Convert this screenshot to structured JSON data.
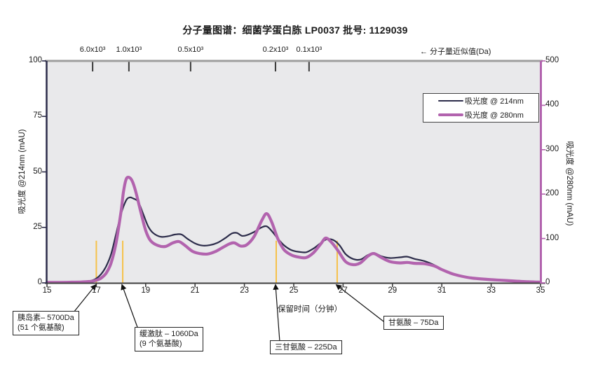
{
  "title": "分子量图谱：细菌学蛋白胨 LP0037  批号: 1129039",
  "top_axis": {
    "note": "← 分子量近似值(Da)",
    "markers": [
      {
        "label": "6.0x10³",
        "t": 16.85
      },
      {
        "label": "1.0x10³",
        "t": 18.32
      },
      {
        "label": "0.5x10³",
        "t": 20.82
      },
      {
        "label": "0.2x10³",
        "t": 24.26
      },
      {
        "label": "0.1x10³",
        "t": 25.62
      }
    ]
  },
  "axes": {
    "left": {
      "title": "吸光度 @214nm (mAU)",
      "ticks": [
        0,
        25,
        50,
        75,
        100
      ]
    },
    "right": {
      "title": "吸光度 @280nm (mAU)",
      "ticks": [
        0,
        100,
        200,
        300,
        400,
        500
      ]
    },
    "bottom": {
      "title": "保留时间（分钟）",
      "ticks": [
        15,
        17,
        19,
        21,
        23,
        25,
        27,
        29,
        31,
        33,
        35
      ]
    }
  },
  "legend": {
    "items": [
      {
        "label": "吸光度 @ 214nm",
        "color": "#2c2c4a",
        "width": 2
      },
      {
        "label": "吸光度 @ 280nm",
        "color": "#b263ae",
        "width": 4
      }
    ]
  },
  "annotations": [
    {
      "t": 17.0,
      "lines": [
        "胰岛素– 5700Da",
        "(51 个氨基酸)"
      ]
    },
    {
      "t": 18.07,
      "lines": [
        "缓激肽 – 1060Da",
        "(9 个氨基酸)"
      ]
    },
    {
      "t": 24.29,
      "lines": [
        "三甘氨酸 – 225Da"
      ]
    },
    {
      "t": 26.76,
      "lines": [
        "甘氨酸  – 75Da"
      ]
    }
  ],
  "colors": {
    "navy": "#2c2c4a",
    "purple": "#b263ae",
    "marker_orange": "#f6c14a",
    "plot_bg": "#e9e9eb",
    "top_spine": "#9e9e9e",
    "bottom_spine": "#3f3f3f"
  },
  "chart_data": {
    "type": "line",
    "title": "分子量图谱：细菌学蛋白胨 LP0037  批号: 1129039",
    "xlabel": "保留时间（分钟）",
    "ylabel_left": "吸光度 @214nm (mAU)",
    "ylabel_right": "吸光度 @280nm (mAU)",
    "xlim": [
      15,
      35
    ],
    "ylim_left": [
      0,
      100
    ],
    "ylim_right": [
      0,
      500
    ],
    "grid": false,
    "legend_position": "upper right inside",
    "series": [
      {
        "name": "吸光度 @ 214nm",
        "axis": "left",
        "color": "#2c2c4a",
        "width": 2.2,
        "x": [
          15,
          15.5,
          16,
          16.4,
          16.8,
          17,
          17.2,
          17.4,
          17.6,
          17.8,
          18,
          18.2,
          18.35,
          18.5,
          18.7,
          18.9,
          19.1,
          19.3,
          19.6,
          19.9,
          20.2,
          20.45,
          20.7,
          21,
          21.3,
          21.6,
          21.9,
          22.2,
          22.5,
          22.7,
          22.9,
          23.1,
          23.4,
          23.7,
          23.9,
          24.1,
          24.35,
          24.6,
          24.9,
          25.2,
          25.5,
          25.8,
          26.1,
          26.35,
          26.6,
          26.85,
          27.1,
          27.4,
          27.7,
          28,
          28.25,
          28.55,
          28.9,
          29.3,
          29.6,
          29.9,
          30.3,
          30.7,
          31,
          31.4,
          31.8,
          32.2,
          32.8,
          33.4,
          34,
          34.5,
          35
        ],
        "y": [
          0.3,
          0.3,
          0.4,
          0.5,
          1,
          2,
          4,
          7.5,
          13,
          22,
          31,
          37,
          38.5,
          38,
          36.5,
          31,
          25.5,
          22.5,
          20.8,
          21,
          21.8,
          21.8,
          19.8,
          17.8,
          16.8,
          17,
          18,
          20,
          22.3,
          22.5,
          21.2,
          21.5,
          23,
          25,
          25.5,
          23.5,
          20,
          17,
          14.8,
          14,
          13.8,
          15.5,
          18,
          19.7,
          19.3,
          17,
          13,
          10.8,
          10.5,
          12.5,
          13.5,
          12,
          11.2,
          11.5,
          11.8,
          10.8,
          9.8,
          8,
          6.2,
          4.2,
          3,
          2.2,
          1.5,
          1.1,
          0.8,
          0.5,
          0.3
        ]
      },
      {
        "name": "吸光度 @ 280nm",
        "axis": "right",
        "color": "#b263ae",
        "width": 4.2,
        "x": [
          15,
          15.5,
          16,
          16.4,
          16.8,
          17,
          17.2,
          17.4,
          17.6,
          17.8,
          18,
          18.1,
          18.2,
          18.3,
          18.45,
          18.6,
          18.8,
          19,
          19.2,
          19.5,
          19.8,
          20.1,
          20.35,
          20.6,
          20.9,
          21.2,
          21.5,
          21.8,
          22.1,
          22.4,
          22.6,
          22.85,
          23.1,
          23.4,
          23.7,
          23.9,
          24.1,
          24.35,
          24.6,
          24.9,
          25.2,
          25.5,
          25.8,
          26.1,
          26.3,
          26.55,
          26.8,
          27.1,
          27.4,
          27.7,
          28,
          28.25,
          28.55,
          28.9,
          29.3,
          29.6,
          29.9,
          30.3,
          30.7,
          31,
          31.4,
          31.8,
          32.2,
          32.8,
          33.4,
          34,
          34.5,
          35
        ],
        "y": [
          1,
          1,
          1.5,
          2,
          3.5,
          6,
          11,
          22,
          45,
          90,
          160,
          205,
          232,
          238,
          230,
          205,
          160,
          118,
          95,
          84,
          82,
          90,
          93,
          84,
          71,
          66,
          65,
          70,
          79,
          88,
          90,
          83,
          86,
          105,
          140,
          156,
          138,
          100,
          75,
          63,
          58,
          57,
          68,
          88,
          101,
          90,
          72,
          48,
          41,
          45,
          60,
          66,
          57,
          48,
          45,
          46,
          44,
          43,
          38,
          30,
          21,
          15,
          11,
          8,
          6,
          4,
          2.5,
          1.5
        ]
      }
    ],
    "marker_lines": {
      "color": "#f6c14a",
      "top_value_left_axis": 19,
      "t": [
        17.0,
        18.07,
        24.29,
        26.76
      ]
    }
  }
}
